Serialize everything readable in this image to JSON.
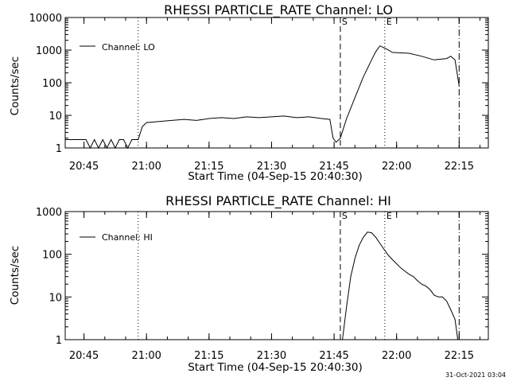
{
  "footer": {
    "timestamp": "31-Oct-2021 03:04"
  },
  "chart_data": [
    {
      "type": "line",
      "title": "RHESSI PARTICLE_RATE Channel: LO",
      "xlabel": "Start Time (04-Sep-15 20:40:30)",
      "ylabel": "Counts/sec",
      "yscale": "log",
      "xlim": [
        "20:40:30",
        "22:22:00"
      ],
      "ylim": [
        1,
        10000
      ],
      "x_ticks": [
        "20:45",
        "21:00",
        "21:15",
        "21:30",
        "21:45",
        "22:00",
        "22:15"
      ],
      "y_ticks": [
        "1",
        "10",
        "100",
        "1000",
        "10000"
      ],
      "legend": {
        "position": "top-left",
        "entries": [
          "Channel: LO"
        ]
      },
      "markers": [
        {
          "time": "20:58:00",
          "style": "dotted",
          "label": ""
        },
        {
          "time": "21:46:30",
          "style": "dashed",
          "label": "S"
        },
        {
          "time": "21:57:10",
          "style": "dotted",
          "label": "E"
        },
        {
          "time": "22:15:00",
          "style": "dashdot",
          "label": ""
        }
      ],
      "series": [
        {
          "name": "Channel: LO",
          "x": [
            "20:40:30",
            "20:41:30",
            "20:43:00",
            "20:44:30",
            "20:45:30",
            "20:46:30",
            "20:47:30",
            "20:48:30",
            "20:49:30",
            "20:50:30",
            "20:51:30",
            "20:52:30",
            "20:53:30",
            "20:54:30",
            "20:55:30",
            "20:56:30",
            "20:57:30",
            "20:58:00",
            "20:59:00",
            "21:00:00",
            "21:03:00",
            "21:06:00",
            "21:09:00",
            "21:12:00",
            "21:15:00",
            "21:18:00",
            "21:21:00",
            "21:24:00",
            "21:27:00",
            "21:30:00",
            "21:33:00",
            "21:36:00",
            "21:39:00",
            "21:42:00",
            "21:44:00",
            "21:44:45",
            "21:45:30",
            "21:46:30",
            "21:48:00",
            "21:50:00",
            "21:52:00",
            "21:54:00",
            "21:55:00",
            "21:56:00",
            "21:57:30",
            "21:59:00",
            "22:03:00",
            "22:06:00",
            "22:09:00",
            "22:12:00",
            "22:13:00",
            "22:14:00",
            "22:15:00"
          ],
          "y": [
            1.8,
            1.8,
            1.8,
            1.8,
            1.8,
            1,
            1.8,
            1,
            1.8,
            1,
            1.8,
            1,
            1.8,
            1.8,
            1,
            1.8,
            1.8,
            1.8,
            4.5,
            6,
            6.5,
            7,
            7.5,
            7,
            8,
            8.5,
            8,
            9,
            8.5,
            9,
            9.5,
            8.5,
            9,
            8,
            7.5,
            2,
            1.5,
            2,
            8,
            35,
            150,
            500,
            900,
            1350,
            1100,
            850,
            800,
            650,
            500,
            550,
            650,
            500,
            80
          ]
        }
      ]
    },
    {
      "type": "line",
      "title": "RHESSI PARTICLE_RATE Channel: HI",
      "xlabel": "Start Time (04-Sep-15 20:40:30)",
      "ylabel": "Counts/sec",
      "yscale": "log",
      "xlim": [
        "20:40:30",
        "22:22:00"
      ],
      "ylim": [
        1,
        1000
      ],
      "x_ticks": [
        "20:45",
        "21:00",
        "21:15",
        "21:30",
        "21:45",
        "22:00",
        "22:15"
      ],
      "y_ticks": [
        "1",
        "10",
        "100",
        "1000"
      ],
      "legend": {
        "position": "top-left",
        "entries": [
          "Channel: HI"
        ]
      },
      "markers": [
        {
          "time": "20:58:00",
          "style": "dotted",
          "label": ""
        },
        {
          "time": "21:46:30",
          "style": "dashed",
          "label": "S"
        },
        {
          "time": "21:57:10",
          "style": "dotted",
          "label": "E"
        },
        {
          "time": "22:15:00",
          "style": "dashdot",
          "label": ""
        }
      ],
      "series": [
        {
          "name": "Channel: HI",
          "x": [
            "21:47:00",
            "21:48:00",
            "21:49:00",
            "21:50:00",
            "21:51:00",
            "21:52:00",
            "21:53:00",
            "21:54:00",
            "21:55:00",
            "21:56:00",
            "21:57:00",
            "21:58:00",
            "21:59:00",
            "22:00:00",
            "22:01:00",
            "22:02:00",
            "22:03:00",
            "22:04:00",
            "22:05:00",
            "22:06:00",
            "22:07:00",
            "22:08:00",
            "22:09:00",
            "22:10:00",
            "22:11:00",
            "22:12:00",
            "22:13:00",
            "22:14:00",
            "22:14:40"
          ],
          "y": [
            1,
            6,
            30,
            80,
            160,
            250,
            330,
            320,
            250,
            180,
            130,
            95,
            75,
            60,
            48,
            40,
            34,
            30,
            24,
            20,
            18,
            15,
            11,
            10,
            10,
            8,
            5,
            3,
            1
          ]
        }
      ]
    }
  ]
}
